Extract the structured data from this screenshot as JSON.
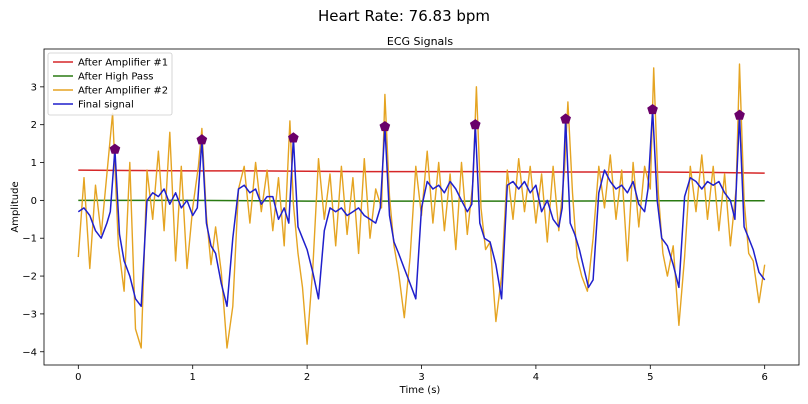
{
  "suptitle": "Heart Rate: 76.83 bpm",
  "chart_data": {
    "type": "line",
    "title": "ECG Signals",
    "xlabel": "Time (s)",
    "ylabel": "Amplitude",
    "xlim": [
      -0.3,
      6.3
    ],
    "ylim": [
      -4.35,
      4.0
    ],
    "xticks": [
      0,
      1,
      2,
      3,
      4,
      5,
      6
    ],
    "yticks": [
      -4,
      -3,
      -2,
      -1,
      0,
      1,
      2,
      3
    ],
    "grid": false,
    "legend_position": "top-left",
    "series": [
      {
        "name": "After Amplifier #1",
        "color": "#d62728",
        "style": "line",
        "x": [
          0,
          0.5,
          1,
          1.5,
          2,
          2.5,
          3,
          3.5,
          4,
          4.5,
          5,
          5.5,
          6
        ],
        "y": [
          0.8,
          0.79,
          0.78,
          0.78,
          0.77,
          0.76,
          0.76,
          0.76,
          0.75,
          0.75,
          0.75,
          0.74,
          0.72
        ]
      },
      {
        "name": "After High Pass",
        "color": "#2a7a12",
        "style": "line",
        "x": [
          0,
          1,
          2,
          3,
          4,
          5,
          6
        ],
        "y": [
          0.0,
          0.0,
          -0.02,
          -0.02,
          -0.02,
          -0.01,
          -0.01
        ]
      },
      {
        "name": "After Amplifier #2",
        "color": "#e5a422",
        "style": "line",
        "x": [
          0,
          0.05,
          0.1,
          0.15,
          0.2,
          0.25,
          0.3,
          0.35,
          0.4,
          0.45,
          0.5,
          0.55,
          0.6,
          0.65,
          0.7,
          0.75,
          0.8,
          0.85,
          0.9,
          0.95,
          1.0,
          1.05,
          1.08,
          1.12,
          1.16,
          1.2,
          1.25,
          1.3,
          1.35,
          1.4,
          1.45,
          1.5,
          1.55,
          1.6,
          1.65,
          1.7,
          1.75,
          1.8,
          1.85,
          1.88,
          1.92,
          1.96,
          2.0,
          2.05,
          2.1,
          2.15,
          2.2,
          2.25,
          2.3,
          2.35,
          2.4,
          2.45,
          2.5,
          2.55,
          2.6,
          2.65,
          2.68,
          2.72,
          2.76,
          2.8,
          2.85,
          2.9,
          2.95,
          3.0,
          3.05,
          3.1,
          3.15,
          3.2,
          3.25,
          3.3,
          3.35,
          3.4,
          3.45,
          3.48,
          3.52,
          3.56,
          3.6,
          3.65,
          3.7,
          3.75,
          3.8,
          3.85,
          3.9,
          3.95,
          4.0,
          4.05,
          4.1,
          4.15,
          4.2,
          4.25,
          4.28,
          4.32,
          4.36,
          4.4,
          4.45,
          4.5,
          4.55,
          4.6,
          4.65,
          4.7,
          4.75,
          4.8,
          4.85,
          4.9,
          4.95,
          5.0,
          5.03,
          5.07,
          5.11,
          5.15,
          5.2,
          5.25,
          5.3,
          5.35,
          5.4,
          5.45,
          5.5,
          5.55,
          5.6,
          5.65,
          5.7,
          5.75,
          5.78,
          5.82,
          5.86,
          5.9,
          5.95,
          6.0
        ],
        "y": [
          -1.5,
          0.6,
          -1.8,
          0.4,
          -0.9,
          0.7,
          2.3,
          -1.2,
          -2.4,
          1.0,
          -3.4,
          -3.9,
          0.8,
          -0.5,
          1.3,
          -0.8,
          1.8,
          -1.6,
          0.9,
          -1.8,
          -0.2,
          0.9,
          1.9,
          -0.4,
          -1.7,
          -0.7,
          -1.9,
          -3.9,
          -2.8,
          0.3,
          0.9,
          -0.6,
          1.0,
          -0.3,
          0.8,
          -0.8,
          0.6,
          -1.2,
          2.1,
          -0.1,
          -1.4,
          -2.3,
          -3.8,
          -1.8,
          1.1,
          -0.5,
          0.7,
          -1.2,
          0.9,
          -0.9,
          0.6,
          -1.4,
          1.1,
          -1.0,
          0.3,
          -0.2,
          2.8,
          0.1,
          -1.2,
          -1.9,
          -3.1,
          -1.5,
          0.9,
          -0.4,
          1.3,
          -0.6,
          1.0,
          -0.8,
          0.7,
          -1.3,
          1.0,
          -0.9,
          0.5,
          3.0,
          -0.2,
          -1.3,
          -1.1,
          -3.2,
          -2.0,
          0.8,
          -0.5,
          1.1,
          -0.3,
          0.9,
          -0.6,
          0.7,
          -1.1,
          0.9,
          -0.8,
          0.8,
          2.6,
          0.2,
          -1.5,
          -2.0,
          -2.4,
          -1.0,
          0.9,
          -0.2,
          1.2,
          -0.5,
          0.8,
          -1.6,
          1.0,
          -0.7,
          0.9,
          0.3,
          3.5,
          0.2,
          -1.4,
          -2.0,
          -1.2,
          -3.3,
          -1.5,
          0.9,
          -0.3,
          1.2,
          -0.5,
          0.9,
          -0.8,
          0.7,
          -1.2,
          0.3,
          3.6,
          0.0,
          -1.4,
          -1.6,
          -2.7,
          -1.7
        ]
      },
      {
        "name": "Final signal",
        "color": "#1f1fcc",
        "style": "line",
        "x": [
          0,
          0.05,
          0.1,
          0.15,
          0.2,
          0.25,
          0.28,
          0.32,
          0.36,
          0.4,
          0.45,
          0.5,
          0.55,
          0.6,
          0.65,
          0.7,
          0.75,
          0.8,
          0.85,
          0.9,
          0.95,
          1.0,
          1.04,
          1.08,
          1.12,
          1.16,
          1.2,
          1.25,
          1.3,
          1.35,
          1.4,
          1.45,
          1.5,
          1.55,
          1.6,
          1.65,
          1.7,
          1.75,
          1.8,
          1.84,
          1.88,
          1.92,
          1.96,
          2.0,
          2.05,
          2.1,
          2.15,
          2.2,
          2.25,
          2.3,
          2.35,
          2.4,
          2.45,
          2.5,
          2.55,
          2.6,
          2.64,
          2.68,
          2.72,
          2.76,
          2.8,
          2.85,
          2.9,
          2.95,
          3.0,
          3.05,
          3.1,
          3.15,
          3.2,
          3.25,
          3.3,
          3.35,
          3.4,
          3.44,
          3.47,
          3.51,
          3.55,
          3.6,
          3.65,
          3.7,
          3.75,
          3.8,
          3.85,
          3.9,
          3.95,
          4.0,
          4.05,
          4.1,
          4.15,
          4.2,
          4.23,
          4.26,
          4.3,
          4.34,
          4.38,
          4.42,
          4.46,
          4.5,
          4.55,
          4.6,
          4.65,
          4.7,
          4.75,
          4.8,
          4.85,
          4.9,
          4.95,
          4.98,
          5.02,
          5.06,
          5.1,
          5.15,
          5.2,
          5.25,
          5.3,
          5.35,
          5.4,
          5.45,
          5.5,
          5.55,
          5.6,
          5.65,
          5.7,
          5.74,
          5.78,
          5.82,
          5.86,
          5.9,
          5.95,
          6.0
        ],
        "y": [
          -0.3,
          -0.2,
          -0.4,
          -0.8,
          -1.0,
          -0.6,
          -0.3,
          1.35,
          -0.9,
          -1.6,
          -2.0,
          -2.6,
          -2.8,
          0.0,
          0.2,
          0.1,
          0.3,
          -0.1,
          0.2,
          -0.2,
          0.0,
          -0.4,
          -0.2,
          1.6,
          -0.6,
          -1.2,
          -1.4,
          -2.2,
          -2.8,
          -1.0,
          0.3,
          0.4,
          0.2,
          0.3,
          -0.1,
          0.1,
          0.1,
          -0.5,
          -0.2,
          -0.6,
          1.65,
          -0.7,
          -1.0,
          -1.3,
          -1.9,
          -2.6,
          -0.8,
          -0.2,
          -0.3,
          -0.2,
          -0.4,
          -0.3,
          -0.2,
          -0.4,
          -0.5,
          -0.6,
          -0.2,
          1.95,
          -0.4,
          -1.1,
          -1.4,
          -1.8,
          -2.2,
          -2.6,
          -0.2,
          0.5,
          0.3,
          0.4,
          0.2,
          0.5,
          0.3,
          0.0,
          -0.3,
          -0.1,
          2.0,
          -0.6,
          -1.0,
          -1.1,
          -1.7,
          -2.6,
          0.4,
          0.5,
          0.3,
          0.5,
          0.2,
          0.4,
          -0.3,
          0.0,
          -0.5,
          -0.7,
          -0.2,
          2.15,
          -0.6,
          -0.9,
          -1.3,
          -1.8,
          -2.3,
          -2.1,
          0.2,
          0.8,
          0.5,
          0.3,
          0.4,
          0.2,
          0.5,
          -0.1,
          -0.3,
          0.3,
          2.4,
          0.0,
          -1.0,
          -1.2,
          -1.7,
          -2.3,
          0.1,
          0.6,
          0.5,
          0.3,
          0.5,
          0.4,
          0.5,
          0.2,
          0.0,
          -0.5,
          2.25,
          -0.7,
          -1.0,
          -1.3,
          -1.9,
          -2.1
        ]
      }
    ],
    "peaks": {
      "color": "#6a006a",
      "marker": "pentagon",
      "x": [
        0.32,
        1.08,
        1.88,
        2.68,
        3.47,
        4.26,
        5.02,
        5.78
      ],
      "y": [
        1.35,
        1.6,
        1.65,
        1.95,
        2.0,
        2.15,
        2.4,
        2.25
      ]
    }
  }
}
